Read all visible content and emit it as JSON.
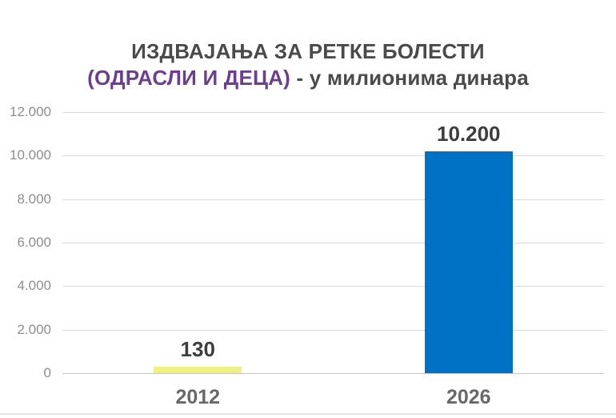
{
  "chart_data": {
    "type": "bar",
    "title_line1": "ИЗДВАЈАЊА ЗА РЕТКЕ БОЛЕСТИ",
    "title_line2_highlight": "(ОДРАСЛИ И ДЕЦА)",
    "title_line2_rest": " - у милионима динара",
    "categories": [
      "2012",
      "2026"
    ],
    "values": [
      130,
      10200
    ],
    "value_labels": [
      "130",
      "10.200"
    ],
    "bar_colors": [
      "#eef180",
      "#0072c6"
    ],
    "ylim": [
      0,
      12000
    ],
    "ytick_step": 2000,
    "ytick_labels": [
      "0",
      "2.000",
      "4.000",
      "6.000",
      "8.000",
      "10.000",
      "12.000"
    ],
    "grid": true,
    "legend": "none",
    "colors": {
      "title_text": "#4a4a4a",
      "title_highlight": "#6b3e91",
      "bar_2012": "#eef180",
      "bar_2026": "#0072c6",
      "axis_labels": "#8e8e8e",
      "gridlines": "#dadada"
    }
  }
}
